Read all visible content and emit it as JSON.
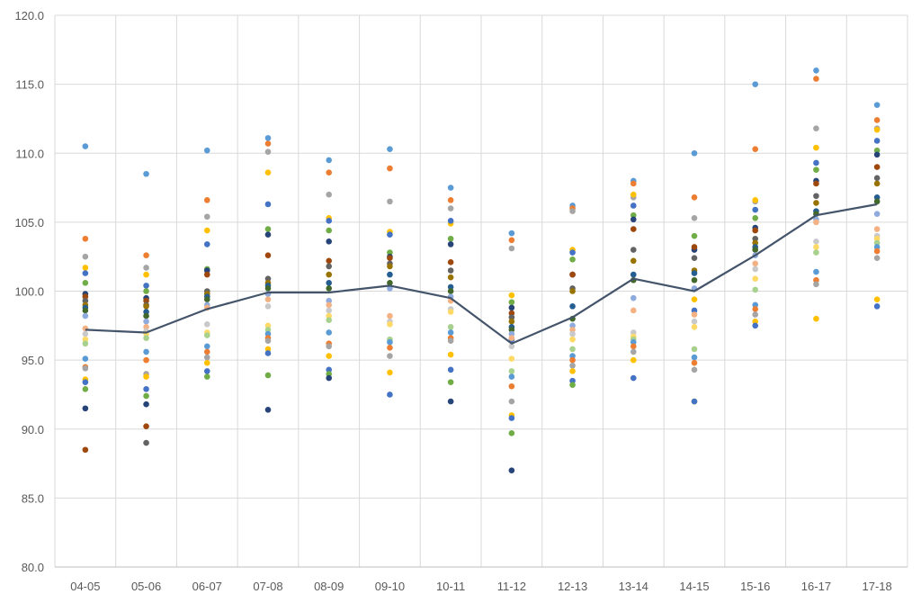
{
  "chart_data": {
    "type": "scatter",
    "title": "",
    "xlabel": "",
    "ylabel": "",
    "ylim": [
      80,
      120
    ],
    "grid": true,
    "legend": "none",
    "categories": [
      "04-05",
      "05-06",
      "06-07",
      "07-08",
      "08-09",
      "09-10",
      "10-11",
      "11-12",
      "12-13",
      "13-14",
      "14-15",
      "15-16",
      "16-17",
      "17-18"
    ],
    "y_ticks": [
      "80.0",
      "85.0",
      "90.0",
      "95.0",
      "100.0",
      "105.0",
      "110.0",
      "115.0",
      "120.0"
    ],
    "colors": {
      "line": "#44546A",
      "grid": "#D9D9D9",
      "palette": [
        "#5B9BD5",
        "#ED7D31",
        "#A5A5A5",
        "#FFC000",
        "#4472C4",
        "#70AD47",
        "#264478",
        "#9E480E",
        "#636363",
        "#997300",
        "#255E91",
        "#43682B",
        "#8FAADC",
        "#F4B183",
        "#C9C9C9",
        "#FFD966",
        "#A9D18E"
      ]
    },
    "series": [
      {
        "values": [
          110.5,
          108.5,
          110.2,
          111.1,
          109.5,
          110.3,
          107.5,
          104.2,
          106.2,
          108.0,
          110.0,
          115.0,
          116.0,
          113.5
        ]
      },
      {
        "values": [
          103.8,
          102.6,
          106.6,
          110.7,
          108.6,
          108.9,
          106.6,
          103.7,
          106.0,
          107.8,
          106.8,
          110.3,
          115.4,
          112.4
        ]
      },
      {
        "values": [
          102.5,
          101.7,
          105.4,
          110.1,
          107.0,
          106.5,
          106.0,
          103.1,
          105.8,
          106.8,
          105.3,
          106.5,
          111.8,
          111.8
        ]
      },
      {
        "values": [
          101.7,
          101.2,
          104.4,
          108.6,
          105.3,
          104.3,
          104.9,
          99.7,
          103.0,
          107.0,
          99.4,
          106.6,
          110.4,
          111.7
        ]
      },
      {
        "values": [
          101.3,
          100.4,
          103.4,
          106.3,
          105.1,
          104.1,
          105.1,
          96.5,
          102.8,
          106.2,
          98.6,
          105.9,
          109.3,
          110.9
        ]
      },
      {
        "values": [
          100.6,
          100.0,
          101.6,
          104.5,
          104.4,
          102.8,
          103.8,
          99.2,
          102.3,
          105.5,
          104.0,
          105.3,
          108.8,
          110.2
        ]
      },
      {
        "values": [
          99.8,
          99.5,
          101.5,
          104.1,
          103.6,
          102.5,
          103.4,
          98.8,
          101.2,
          105.2,
          103.0,
          104.6,
          108.0,
          109.9
        ]
      },
      {
        "values": [
          99.6,
          99.3,
          101.2,
          102.6,
          102.2,
          102.4,
          102.1,
          98.4,
          101.2,
          104.5,
          103.2,
          104.4,
          107.8,
          109.0
        ]
      },
      {
        "values": [
          99.3,
          99.0,
          100.0,
          100.9,
          101.8,
          102.0,
          101.5,
          98.1,
          100.2,
          103.0,
          102.4,
          103.8,
          106.9,
          108.2
        ]
      },
      {
        "values": [
          99.0,
          98.9,
          99.8,
          100.6,
          101.2,
          101.8,
          101.0,
          97.8,
          100.0,
          102.2,
          101.5,
          103.5,
          106.4,
          107.8
        ]
      },
      {
        "values": [
          98.8,
          98.5,
          99.6,
          100.4,
          100.6,
          101.2,
          100.3,
          97.4,
          98.9,
          101.2,
          101.3,
          103.2,
          105.8,
          106.8
        ]
      },
      {
        "values": [
          98.6,
          98.2,
          99.4,
          100.2,
          100.2,
          100.6,
          100.0,
          97.2,
          98.0,
          100.8,
          100.8,
          103.0,
          105.6,
          106.5
        ]
      },
      {
        "values": [
          98.2,
          97.8,
          99.0,
          99.8,
          99.3,
          100.2,
          99.6,
          96.9,
          97.5,
          99.5,
          100.2,
          102.6,
          105.2,
          105.6
        ]
      },
      {
        "values": [
          97.3,
          97.4,
          98.8,
          99.4,
          99.0,
          98.2,
          99.3,
          96.6,
          97.2,
          98.6,
          98.3,
          102.0,
          105.0,
          104.5
        ]
      },
      {
        "values": [
          96.9,
          97.1,
          97.6,
          98.9,
          98.6,
          97.8,
          98.7,
          96.0,
          96.9,
          97.0,
          97.8,
          101.6,
          103.6,
          104.0
        ]
      },
      {
        "values": [
          96.5,
          96.9,
          97.0,
          97.5,
          98.2,
          97.6,
          98.5,
          95.1,
          96.5,
          96.7,
          97.4,
          100.9,
          103.2,
          103.8
        ]
      },
      {
        "values": [
          96.2,
          96.6,
          96.8,
          97.2,
          97.9,
          96.5,
          97.4,
          94.2,
          95.8,
          96.5,
          95.8,
          100.1,
          102.8,
          103.5
        ]
      },
      {
        "values": [
          95.1,
          95.6,
          96.0,
          96.9,
          97.0,
          96.3,
          97.0,
          93.8,
          95.3,
          96.3,
          95.2,
          99.0,
          101.4,
          103.2
        ]
      },
      {
        "values": [
          94.5,
          95.0,
          95.6,
          96.6,
          96.2,
          95.9,
          96.6,
          93.1,
          95.0,
          96.0,
          94.8,
          98.7,
          100.8,
          102.9
        ]
      },
      {
        "values": [
          94.4,
          94.0,
          95.2,
          96.4,
          96.0,
          95.3,
          96.4,
          92.0,
          94.6,
          95.6,
          94.3,
          98.3,
          100.5,
          102.4
        ]
      },
      {
        "values": [
          93.6,
          93.8,
          94.8,
          95.8,
          95.3,
          94.1,
          95.4,
          91.0,
          94.2,
          95.0,
          92.0,
          97.8,
          98.0,
          99.4
        ]
      },
      {
        "values": [
          93.4,
          92.9,
          94.2,
          95.5,
          94.3,
          92.5,
          94.3,
          90.8,
          93.5,
          93.7,
          92.0,
          97.5,
          null,
          98.9
        ]
      },
      {
        "values": [
          92.9,
          92.4,
          93.8,
          93.9,
          94.0,
          null,
          93.4,
          89.7,
          93.2,
          null,
          null,
          null,
          null,
          null
        ]
      },
      {
        "values": [
          91.5,
          91.8,
          null,
          91.4,
          93.7,
          null,
          92.0,
          87.0,
          null,
          null,
          null,
          null,
          null,
          null
        ]
      },
      {
        "values": [
          88.5,
          90.2,
          null,
          null,
          null,
          null,
          null,
          null,
          null,
          null,
          null,
          null,
          null,
          null
        ]
      },
      {
        "values": [
          null,
          89.0,
          null,
          null,
          null,
          null,
          null,
          null,
          null,
          null,
          null,
          null,
          null,
          null
        ]
      }
    ],
    "line_series": {
      "values": [
        97.2,
        97.0,
        98.7,
        99.9,
        99.9,
        100.4,
        99.5,
        96.2,
        98.1,
        100.9,
        100.0,
        102.6,
        105.5,
        106.3
      ]
    }
  }
}
